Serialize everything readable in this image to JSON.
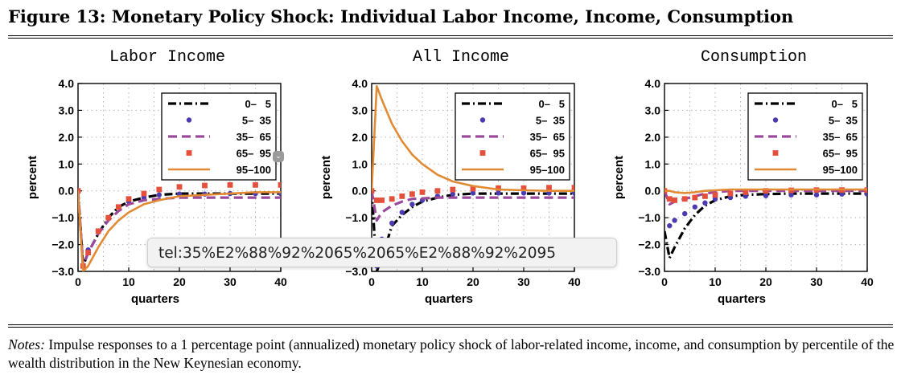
{
  "figure_title": "Figure 13: Monetary Policy Shock: Individual Labor Income, Income, Consumption",
  "notes": {
    "lead": "Notes:",
    "text": "Impulse responses to a 1 percentage point (annualized) monetary policy shock of labor-related income, income, and consumption by percentile of the wealth distribution in the New Keynesian economy."
  },
  "tooltip": {
    "text": "tel:35%E2%88%92%2065%2065%E2%88%92%2095"
  },
  "colors": {
    "0-5": "#000000",
    "5-35": "#4a3bb0",
    "35-65": "#9b4a9b",
    "65-95": "#e5503c",
    "95-100": "#e28a33"
  },
  "chart_data": [
    {
      "type": "line",
      "title": "Labor Income",
      "xlabel": "quarters",
      "ylabel": "percent",
      "xlim": [
        0,
        40
      ],
      "ylim": [
        -3.0,
        4.0
      ],
      "xticks": [
        "0",
        "10",
        "20",
        "30",
        "40"
      ],
      "yticks": [
        "4.0",
        "3.0",
        "2.0",
        "1.0",
        "0.0",
        "−1.0",
        "−2.0",
        "−3.0"
      ],
      "grid": true,
      "legend": "top-right",
      "x": [
        0,
        1,
        2,
        4,
        6,
        8,
        10,
        13,
        16,
        20,
        25,
        30,
        35,
        40
      ],
      "series": [
        {
          "name": "0–   5",
          "values": [
            0,
            -2.8,
            -2.3,
            -1.6,
            -1.0,
            -0.6,
            -0.4,
            -0.25,
            -0.15,
            -0.1,
            -0.1,
            -0.1,
            -0.1,
            -0.1
          ]
        },
        {
          "name": "5–  35",
          "values": [
            0,
            -2.8,
            -2.2,
            -1.5,
            -1.0,
            -0.6,
            -0.4,
            -0.25,
            -0.15,
            -0.12,
            -0.12,
            -0.1,
            -0.1,
            -0.1
          ]
        },
        {
          "name": "35–  65",
          "values": [
            0,
            -2.8,
            -2.3,
            -1.6,
            -1.1,
            -0.75,
            -0.5,
            -0.35,
            -0.3,
            -0.25,
            -0.25,
            -0.25,
            -0.25,
            -0.25
          ]
        },
        {
          "name": "65–  95",
          "values": [
            0,
            -2.8,
            -2.3,
            -1.5,
            -1.0,
            -0.6,
            -0.3,
            -0.1,
            0.05,
            0.15,
            0.2,
            0.22,
            0.22,
            0.22
          ]
        },
        {
          "name": "95–100",
          "values": [
            0,
            -3.0,
            -2.8,
            -2.1,
            -1.5,
            -1.1,
            -0.8,
            -0.5,
            -0.35,
            -0.2,
            -0.15,
            -0.1,
            -0.05,
            -0.05
          ]
        }
      ]
    },
    {
      "type": "line",
      "title": "All Income",
      "xlabel": "quarters",
      "ylabel": "percent",
      "xlim": [
        0,
        40
      ],
      "ylim": [
        -3.0,
        4.0
      ],
      "xticks": [
        "0",
        "10",
        "20",
        "30",
        "40"
      ],
      "yticks": [
        "4.0",
        "3.0",
        "2.0",
        "1.0",
        "0.0",
        "−1.0",
        "−2.0",
        "−3.0"
      ],
      "grid": true,
      "legend": "top-right",
      "x": [
        0,
        1,
        2,
        4,
        6,
        8,
        10,
        13,
        16,
        20,
        25,
        30,
        35,
        40
      ],
      "series": [
        {
          "name": "0–   5",
          "values": [
            0,
            -3.0,
            -2.5,
            -1.3,
            -0.9,
            -0.6,
            -0.4,
            -0.25,
            -0.15,
            -0.1,
            -0.1,
            -0.1,
            -0.1,
            -0.1
          ]
        },
        {
          "name": "5–  35",
          "values": [
            0,
            -2.8,
            -1.8,
            -1.2,
            -0.8,
            -0.5,
            -0.35,
            -0.2,
            -0.12,
            -0.08,
            -0.08,
            -0.08,
            -0.08,
            -0.08
          ]
        },
        {
          "name": "35–  65",
          "values": [
            0,
            -1.1,
            -0.8,
            -0.55,
            -0.4,
            -0.3,
            -0.28,
            -0.25,
            -0.25,
            -0.25,
            -0.25,
            -0.25,
            -0.25,
            -0.25
          ]
        },
        {
          "name": "65–  95",
          "values": [
            0,
            -0.35,
            -0.35,
            -0.3,
            -0.2,
            -0.12,
            -0.05,
            0.0,
            0.05,
            0.08,
            0.1,
            0.1,
            0.12,
            0.12
          ]
        },
        {
          "name": "95–100",
          "values": [
            0,
            3.9,
            3.4,
            2.5,
            1.85,
            1.35,
            1.0,
            0.6,
            0.35,
            0.18,
            0.05,
            0.02,
            0.0,
            0.0
          ]
        }
      ]
    },
    {
      "type": "line",
      "title": "Consumption",
      "xlabel": "quarters",
      "ylabel": "percent",
      "xlim": [
        0,
        40
      ],
      "ylim": [
        -3.0,
        4.0
      ],
      "xticks": [
        "0",
        "10",
        "20",
        "30",
        "40"
      ],
      "yticks": [
        "4.0",
        "3.0",
        "2.0",
        "1.0",
        "0.0",
        "−1.0",
        "−2.0",
        "−3.0"
      ],
      "grid": true,
      "legend": "top-right",
      "x": [
        0,
        1,
        2,
        4,
        6,
        8,
        10,
        13,
        16,
        20,
        25,
        30,
        35,
        40
      ],
      "series": [
        {
          "name": "0–   5",
          "values": [
            -1.5,
            -2.5,
            -2.1,
            -1.4,
            -0.9,
            -0.55,
            -0.35,
            -0.2,
            -0.15,
            -0.12,
            -0.1,
            -0.1,
            -0.1,
            -0.1
          ]
        },
        {
          "name": "5–  35",
          "values": [
            0,
            -1.3,
            -1.1,
            -0.85,
            -0.6,
            -0.45,
            -0.3,
            -0.25,
            -0.2,
            -0.18,
            -0.15,
            -0.15,
            -0.12,
            -0.12
          ]
        },
        {
          "name": "35–  65",
          "values": [
            0,
            -0.5,
            -0.4,
            -0.3,
            -0.2,
            -0.1,
            -0.05,
            0.0,
            0.0,
            0.0,
            0.0,
            0.0,
            0.0,
            0.0
          ]
        },
        {
          "name": "65–  95",
          "values": [
            0,
            -0.3,
            -0.35,
            -0.3,
            -0.25,
            -0.2,
            -0.15,
            -0.1,
            -0.05,
            0.0,
            0.02,
            0.03,
            0.03,
            0.03
          ]
        },
        {
          "name": "95–100",
          "values": [
            0,
            0.0,
            -0.05,
            -0.08,
            -0.05,
            0.0,
            0.02,
            0.05,
            0.05,
            0.05,
            0.05,
            0.05,
            0.05,
            0.05
          ]
        }
      ]
    }
  ]
}
